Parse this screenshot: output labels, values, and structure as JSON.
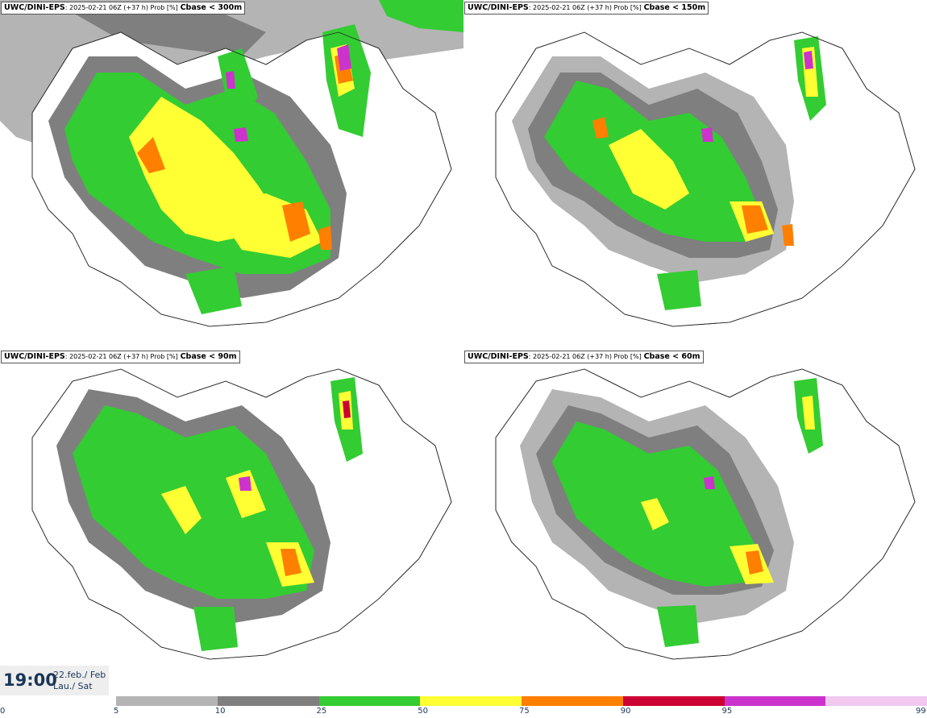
{
  "panels": [
    {
      "model": "UWC/DINI-EPS",
      "run": ": 2025-02-21 06Z (+37 h) Prob [%]",
      "variable": "Cbase < 300m"
    },
    {
      "model": "UWC/DINI-EPS",
      "run": ": 2025-02-21 06Z (+37 h) Prob [%]",
      "variable": "Cbase < 150m"
    },
    {
      "model": "UWC/DINI-EPS",
      "run": ": 2025-02-21 06Z (+37 h) Prob [%]",
      "variable": "Cbase < 90m"
    },
    {
      "model": "UWC/DINI-EPS",
      "run": ": 2025-02-21 06Z (+37 h) Prob [%]",
      "variable": "Cbase < 60m"
    }
  ],
  "valid": {
    "time": "19:00",
    "date_line1": "22.feb./ Feb",
    "date_line2": "Lau./ Sat"
  },
  "colorbar": {
    "ticks": [
      "0",
      "5",
      "10",
      "25",
      "50",
      "75",
      "90",
      "95",
      "99"
    ],
    "colors": [
      "#b4b4b4",
      "#7f7f7f",
      "#33cc33",
      "#ffff33",
      "#ff7f00",
      "#cc0033",
      "#cc33cc",
      "#f0c8f0"
    ]
  },
  "map_colors": {
    "p10": "#b4b4b4",
    "p25": "#7f7f7f",
    "p50": "#33cc33",
    "p75": "#ffff33",
    "p90": "#ff7f00",
    "p95": "#cc0033",
    "p99": "#cc33cc",
    "coast": "#222222"
  }
}
